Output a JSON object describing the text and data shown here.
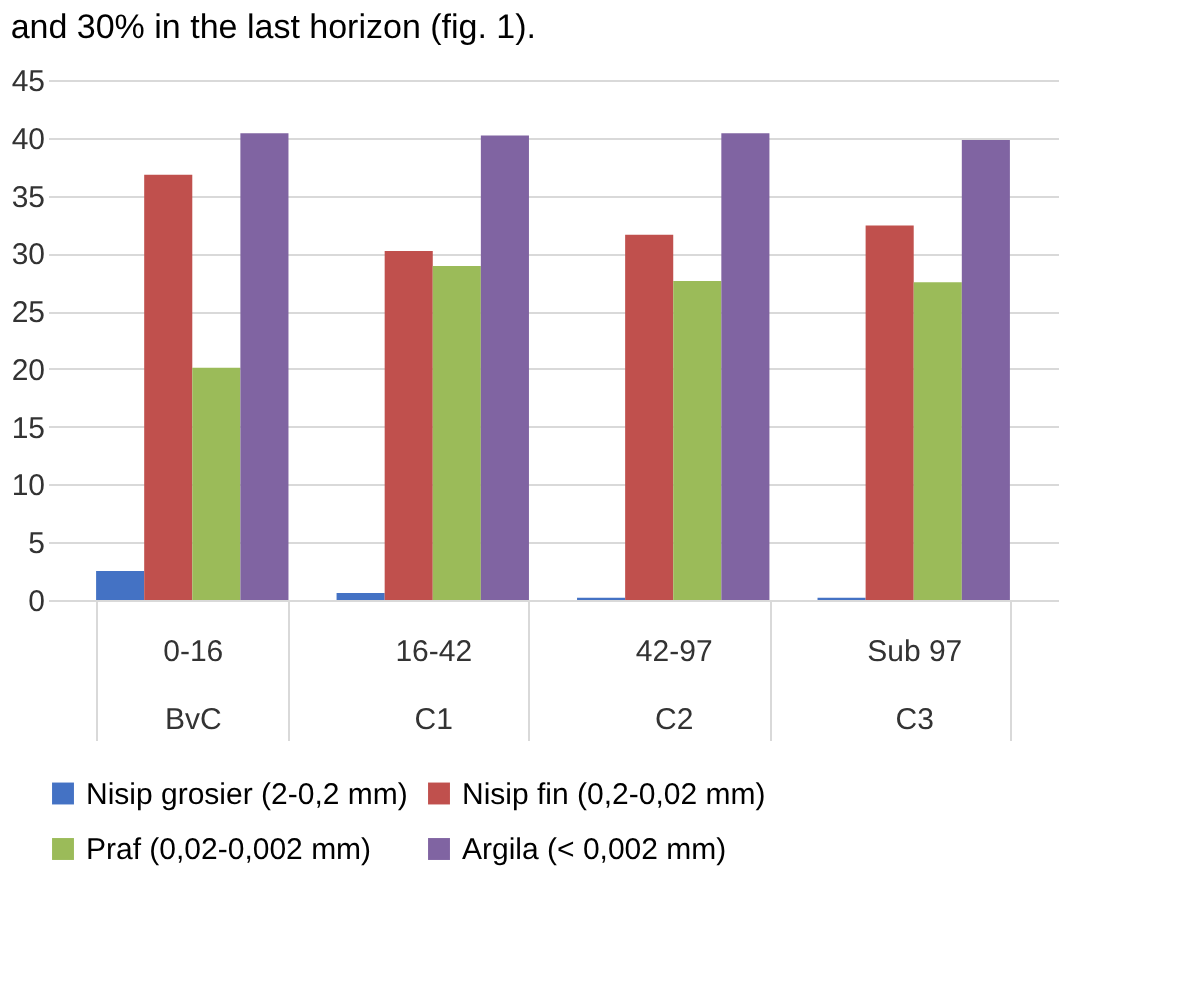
{
  "chart_data": {
    "type": "bar",
    "annotations": [
      "and 30% in the last horizon (fig. 1)."
    ],
    "categories": [
      "0-16\nBvC",
      "16-42\nC1",
      "42-97\nC2",
      "Sub 97\nC3"
    ],
    "series": [
      {
        "name": "Nisip grosier (2-0,2 mm)",
        "color": "#4472c4",
        "values": [
          2.5,
          0.6,
          0.2,
          0.2
        ]
      },
      {
        "name": "Nisip fin (0,2-0,02 mm)",
        "color": "#c0504d",
        "values": [
          36.8,
          30.2,
          31.6,
          32.4
        ]
      },
      {
        "name": "Praf (0,02-0,002 mm)",
        "color": "#9bbb59",
        "values": [
          20.1,
          28.9,
          27.6,
          27.5
        ]
      },
      {
        "name": "Argila (< 0,002 mm)",
        "color": "#8064a2",
        "values": [
          40.4,
          40.2,
          40.4,
          39.8
        ]
      }
    ],
    "ylim": [
      0,
      45
    ],
    "yticks": [
      0,
      5,
      10,
      15,
      20,
      25,
      30,
      35,
      40,
      45
    ],
    "grid": "y",
    "legend": "bottom"
  }
}
